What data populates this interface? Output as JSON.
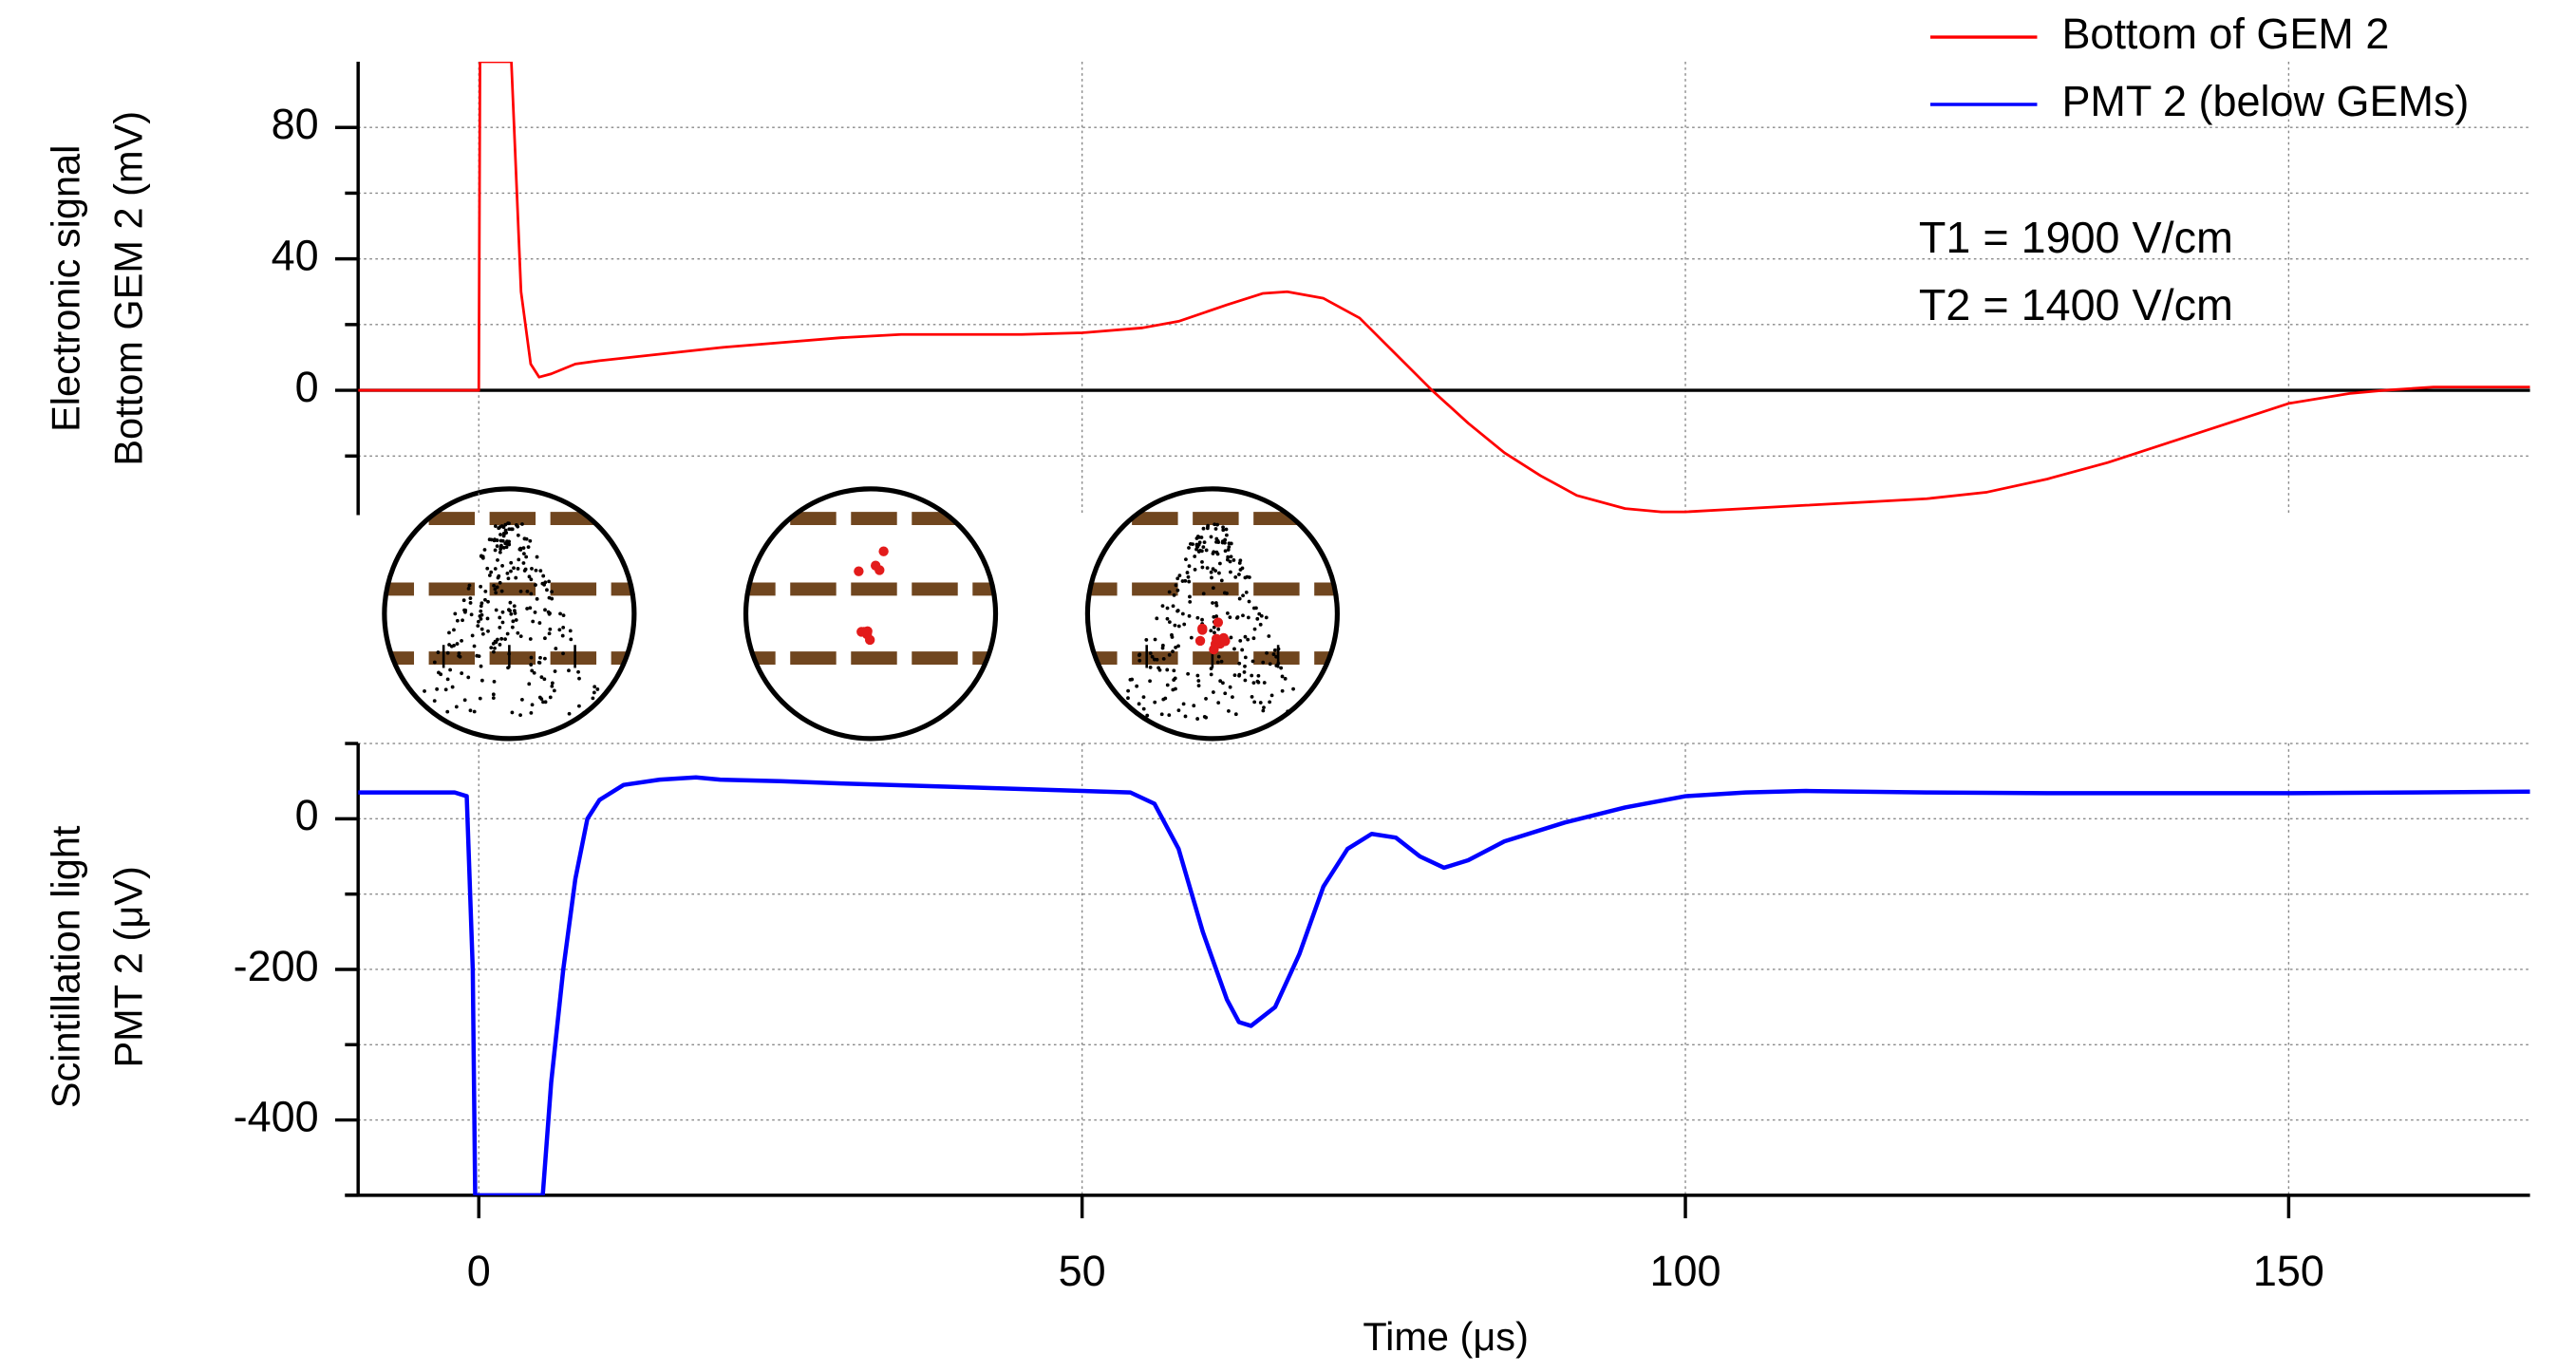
{
  "chart_data": [
    {
      "type": "line",
      "ylabel": [
        "Electronic signal",
        "Bottom GEM 2  (mV)"
      ],
      "xlim": [
        -10,
        170
      ],
      "ylim": [
        -38,
        100
      ],
      "yticks": [
        0,
        40,
        80
      ],
      "yminorticks": [
        -20,
        20,
        60
      ],
      "grid": true,
      "zero_line": true,
      "legend": "upper right",
      "annotations": [
        "T1 = 1900 V/cm",
        "T2 = 1400 V/cm"
      ],
      "x": [
        -10,
        -1,
        0,
        0.1,
        2.7,
        3.5,
        4.3,
        5,
        6,
        8,
        10,
        15,
        20,
        25,
        30,
        35,
        40,
        45,
        50,
        55,
        58,
        62,
        65,
        67,
        70,
        73,
        76,
        79,
        82,
        85,
        88,
        91,
        95,
        98,
        100,
        105,
        110,
        115,
        120,
        125,
        130,
        135,
        140,
        145,
        150,
        155,
        158,
        162,
        166,
        170
      ],
      "series": [
        {
          "name": "Bottom of GEM 2",
          "color": "#ff0000",
          "values": [
            0,
            0,
            0,
            100,
            100,
            30,
            8,
            4,
            5,
            8,
            9,
            11,
            13,
            14.5,
            16,
            17,
            17,
            17,
            17.5,
            19,
            21,
            26,
            29.5,
            30,
            28,
            22,
            11,
            0,
            -10,
            -19,
            -26,
            -32,
            -36,
            -37,
            -37,
            -36,
            -35,
            -34,
            -33,
            -31,
            -27,
            -22,
            -16,
            -10,
            -4,
            -1,
            0,
            1,
            1,
            1
          ]
        }
      ]
    },
    {
      "type": "line",
      "ylabel": [
        "Scintillation light",
        "PMT 2 (μV)"
      ],
      "xlabel": "Time (μs)",
      "xlim": [
        -10,
        170
      ],
      "xticks": [
        0,
        50,
        100,
        150
      ],
      "ylim": [
        -500,
        100
      ],
      "yticks": [
        0,
        -200,
        -400
      ],
      "yminorticks": [
        100,
        -100,
        -300,
        -500
      ],
      "grid": true,
      "x": [
        -10,
        -2,
        -1,
        -0.5,
        -0.3,
        5.3,
        6,
        7,
        8,
        9,
        10,
        12,
        15,
        18,
        20,
        25,
        30,
        40,
        50,
        54,
        56,
        58,
        60,
        62,
        63,
        64,
        66,
        68,
        70,
        72,
        74,
        76,
        78,
        80,
        82,
        85,
        90,
        95,
        100,
        105,
        110,
        120,
        130,
        140,
        150,
        160,
        170
      ],
      "series": [
        {
          "name": "PMT 2 (below GEMs)",
          "color": "#0000ff",
          "values": [
            35,
            35,
            30,
            -200,
            -500,
            -500,
            -350,
            -200,
            -80,
            0,
            25,
            45,
            52,
            55,
            52,
            50,
            47,
            42,
            37,
            35,
            20,
            -40,
            -150,
            -240,
            -270,
            -275,
            -250,
            -180,
            -90,
            -40,
            -20,
            -25,
            -50,
            -65,
            -55,
            -30,
            -5,
            15,
            30,
            35,
            37,
            35,
            34,
            34,
            34,
            35,
            36
          ]
        }
      ]
    }
  ]
}
